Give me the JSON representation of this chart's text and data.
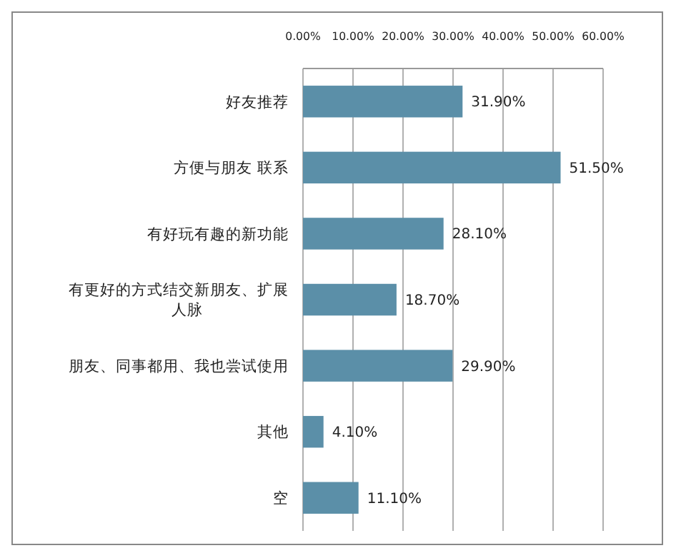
{
  "chart_data": {
    "type": "bar",
    "orientation": "horizontal",
    "categories": [
      "好友推荐",
      "方便与朋友 联系",
      "有好玩有趣的新功能",
      "有更好的方式结交新朋友、扩展人脉",
      "朋友、同事都用、我也尝试使用",
      "其他",
      "空"
    ],
    "values": [
      31.9,
      51.5,
      28.1,
      18.7,
      29.9,
      4.1,
      11.1
    ],
    "value_labels": [
      "31.90%",
      "51.50%",
      "28.10%",
      "18.70%",
      "29.90%",
      "4.10%",
      "11.10%"
    ],
    "color": "#5b8fa8",
    "xlim": [
      0,
      60
    ],
    "xticks": [
      {
        "value": 0,
        "label": "0.00%"
      },
      {
        "value": 10,
        "label": "10.00%"
      },
      {
        "value": 20,
        "label": "20.00%"
      },
      {
        "value": 30,
        "label": "30.00%"
      },
      {
        "value": 40,
        "label": "40.00%"
      },
      {
        "value": 50,
        "label": "50.00%"
      },
      {
        "value": 60,
        "label": "60.00%"
      }
    ],
    "grid": "x"
  }
}
